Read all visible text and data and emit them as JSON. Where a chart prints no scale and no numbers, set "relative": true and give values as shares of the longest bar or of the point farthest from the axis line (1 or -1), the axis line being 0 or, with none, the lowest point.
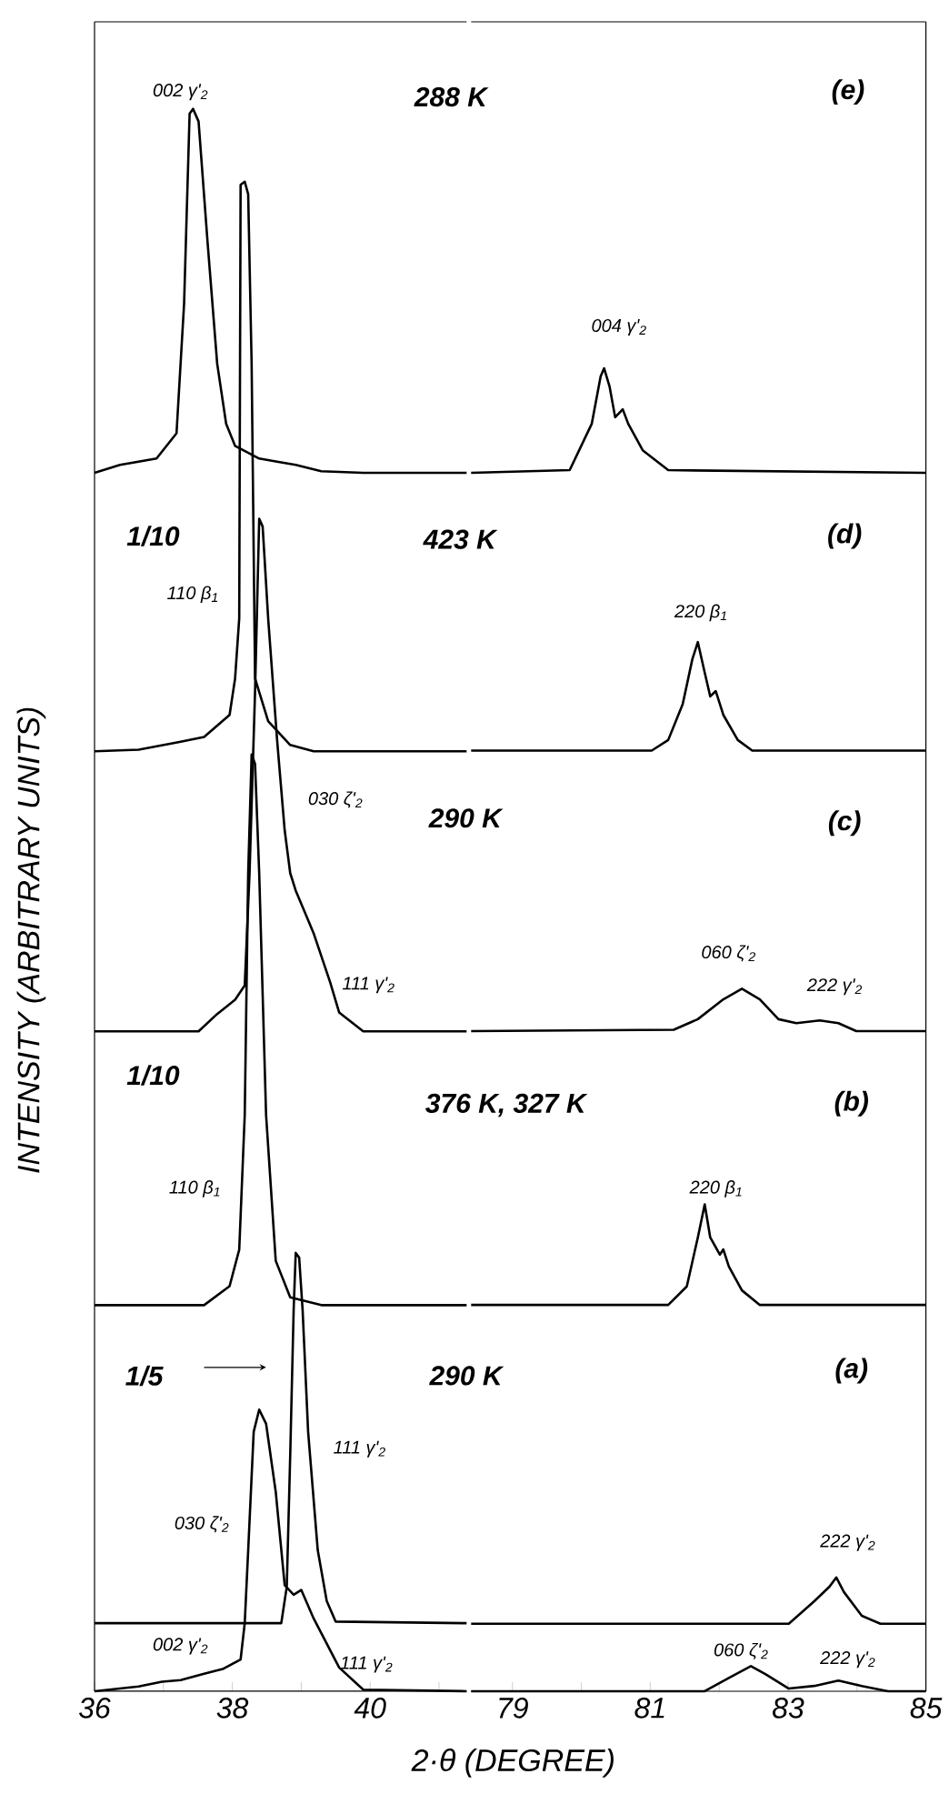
{
  "chart_data": [
    {
      "type": "line",
      "relative": true,
      "xlim": [
        36,
        41.4
      ],
      "xticks": [
        36,
        {
          "value": 37,
          "label": null
        },
        38,
        {
          "value": 39,
          "label": null
        },
        40,
        {
          "value": 41,
          "label": null
        }
      ],
      "ylabel": "INTENSITY (ARBITRARY UNITS)",
      "series": [
        {
          "color": "#000000",
          "x": [
            36,
            36.37,
            36.9,
            37.19,
            37.3,
            37.38,
            37.43,
            37.51,
            37.64,
            37.78,
            37.91,
            38.04,
            38.39,
            38.65,
            38.92,
            39.29,
            39.9,
            41.4
          ],
          "values": [
            0.77,
            0.775,
            0.779,
            0.795,
            0.877,
            0.997,
            1.0,
            0.992,
            0.916,
            0.839,
            0.801,
            0.787,
            0.779,
            0.777,
            0.775,
            0.771,
            0.77,
            0.77
          ]
        },
        {
          "color": "#000000",
          "x": [
            36,
            36.64,
            37.25,
            37.59,
            37.96,
            38.04,
            38.1,
            38.12,
            38.18,
            38.23,
            38.28,
            38.33,
            38.52,
            38.84,
            39.18,
            41.4
          ],
          "values": [
            0.594,
            0.595,
            0.6,
            0.603,
            0.617,
            0.64,
            0.678,
            0.952,
            0.954,
            0.946,
            0.839,
            0.64,
            0.613,
            0.598,
            0.594,
            0.594
          ]
        },
        {
          "color": "#000000",
          "x": [
            36,
            37.51,
            37.78,
            38.04,
            38.18,
            38.25,
            38.33,
            38.39,
            38.44,
            38.52,
            38.65,
            38.76,
            38.84,
            38.92,
            39.18,
            39.42,
            39.55,
            39.9,
            41.4
          ],
          "values": [
            0.417,
            0.417,
            0.428,
            0.437,
            0.446,
            0.517,
            0.632,
            0.741,
            0.736,
            0.678,
            0.601,
            0.544,
            0.517,
            0.506,
            0.479,
            0.448,
            0.429,
            0.417,
            0.417
          ]
        },
        {
          "color": "#000000",
          "x": [
            36,
            37.59,
            37.96,
            38.1,
            38.18,
            38.23,
            38.28,
            38.33,
            38.39,
            38.49,
            38.63,
            38.84,
            39.29,
            41.4
          ],
          "values": [
            0.244,
            0.244,
            0.256,
            0.279,
            0.364,
            0.517,
            0.592,
            0.586,
            0.517,
            0.364,
            0.272,
            0.249,
            0.244,
            0.244
          ]
        },
        {
          "color": "#000000",
          "x": [
            36,
            38.71,
            38.79,
            38.84,
            38.89,
            38.92,
            38.97,
            39.02,
            39.1,
            39.24,
            39.37,
            39.5,
            41.4
          ],
          "values": [
            0.043,
            0.043,
            0.066,
            0.149,
            0.241,
            0.277,
            0.274,
            0.241,
            0.164,
            0.089,
            0.057,
            0.044,
            0.043
          ]
        },
        {
          "color": "#000000",
          "x": [
            36,
            36.64,
            36.98,
            37.25,
            37.59,
            37.86,
            38.12,
            38.18,
            38.23,
            38.31,
            38.39,
            38.49,
            38.63,
            38.76,
            38.89,
            39.0,
            39.18,
            39.55,
            39.9,
            41.4
          ],
          "values": [
            0,
            0.003,
            0.006,
            0.007,
            0.011,
            0.014,
            0.02,
            0.043,
            0.089,
            0.164,
            0.178,
            0.169,
            0.126,
            0.067,
            0.061,
            0.064,
            0.046,
            0.015,
            0.001,
            0
          ]
        }
      ],
      "annotations": [
        "002 γ'$_{2}$",
        "288 K",
        "1/10",
        "110 β$_{1}$",
        "423 K",
        "030 ζ'$_{2}$",
        "290 K",
        "111 γ'$_{2}$",
        "1/10",
        "110 β$_{1}$",
        "1/5",
        "290 K",
        "111 γ'$_{2}$",
        "030 ζ'$_{2}$",
        "002 γ'$_{2}$",
        "111 γ'$_{2}$"
      ]
    },
    {
      "type": "line",
      "relative": true,
      "xlim": [
        78.4,
        85
      ],
      "xticks": [
        79,
        {
          "value": 80,
          "label": null
        },
        81,
        {
          "value": 82,
          "label": null
        },
        83,
        {
          "value": 84,
          "label": null
        },
        85
      ],
      "xlabel": "2·θ (DEGREE)",
      "series": [
        {
          "color": "#000000",
          "x": [
            78.4,
            79.83,
            80.15,
            80.28,
            80.33,
            80.41,
            80.49,
            80.6,
            80.68,
            80.89,
            81.26,
            85
          ],
          "values": [
            0.921,
            0.923,
            0.958,
            0.994,
            1.0,
            0.986,
            0.963,
            0.969,
            0.958,
            0.938,
            0.923,
            0.921
          ]
        },
        {
          "color": "#000000",
          "x": [
            78.4,
            81.02,
            81.26,
            81.47,
            81.61,
            81.69,
            81.79,
            81.87,
            81.95,
            82.06,
            82.27,
            82.48,
            85
          ],
          "values": [
            0.711,
            0.711,
            0.719,
            0.746,
            0.78,
            0.793,
            0.77,
            0.752,
            0.756,
            0.738,
            0.719,
            0.711,
            0.711
          ]
        },
        {
          "color": "#000000",
          "x": [
            78.4,
            81.34,
            81.69,
            82.06,
            82.33,
            82.59,
            82.86,
            83.12,
            83.46,
            83.73,
            83.99,
            85
          ],
          "values": [
            0.499,
            0.5,
            0.508,
            0.523,
            0.531,
            0.523,
            0.508,
            0.505,
            0.507,
            0.505,
            0.499,
            0.499
          ]
        },
        {
          "color": "#000000",
          "x": [
            78.4,
            81.26,
            81.53,
            81.69,
            81.79,
            81.87,
            82.01,
            82.06,
            82.14,
            82.33,
            82.59,
            85
          ],
          "values": [
            0.292,
            0.292,
            0.306,
            0.343,
            0.368,
            0.343,
            0.33,
            0.334,
            0.321,
            0.303,
            0.292,
            0.292
          ]
        },
        {
          "color": "#000000",
          "x": [
            78.4,
            83.01,
            83.38,
            83.6,
            83.7,
            83.81,
            84.07,
            84.34,
            85
          ],
          "values": [
            0.051,
            0.051,
            0.068,
            0.079,
            0.086,
            0.075,
            0.057,
            0.051,
            0.051
          ]
        },
        {
          "color": "#000000",
          "x": [
            78.4,
            81.79,
            82.14,
            82.46,
            82.67,
            83.01,
            83.38,
            83.73,
            84.07,
            84.45,
            85
          ],
          "values": [
            0,
            0,
            0.01,
            0.019,
            0.013,
            0.002,
            0.004,
            0.008,
            0.004,
            0,
            0
          ]
        }
      ],
      "annotations": [
        "(e)",
        "004 γ'$_{2}$",
        "(d)",
        "220 β$_{1}$",
        "(c)",
        "060 ζ'$_{2}$",
        "222 γ'$_{2}$",
        "376 K, 327 K",
        "(b)",
        "220 β$_{1}$",
        "(a)",
        "222 γ'$_{2}$",
        "060 ζ'$_{2}$",
        "222 γ'$_{2}$"
      ]
    }
  ]
}
